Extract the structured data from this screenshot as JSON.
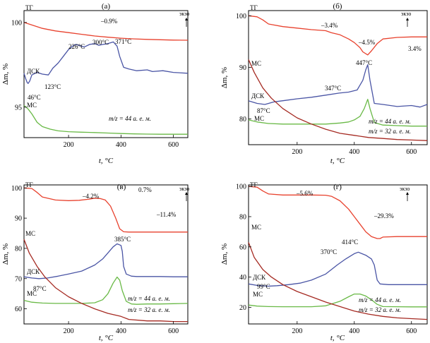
{
  "chart_data": [
    {
      "type": "line",
      "panel_label": "(а)",
      "xlabel": "t, °C",
      "ylabel": "Δm, %",
      "xlim": [
        30,
        655
      ],
      "ylim": [
        93.2,
        100.7
      ],
      "xticks": [
        200,
        400,
        600
      ],
      "yticks": [
        95,
        100
      ],
      "series": [
        {
          "name": "ТГ",
          "kind": "data",
          "color": "#e8422e",
          "x": [
            30,
            60,
            100,
            150,
            200,
            250,
            300,
            350,
            400,
            450,
            500,
            550,
            600,
            655
          ],
          "y": [
            100,
            99.85,
            99.65,
            99.5,
            99.4,
            99.3,
            99.2,
            99.13,
            99.07,
            99.03,
            99.0,
            98.98,
            98.96,
            98.95
          ]
        },
        {
          "name": "ДСК",
          "kind": "relative",
          "color": "#4a55a5",
          "x": [
            30,
            36,
            42,
            46,
            52,
            60,
            80,
            100,
            123,
            140,
            160,
            180,
            200,
            215,
            226,
            240,
            260,
            280,
            300,
            315,
            330,
            350,
            371,
            385,
            395,
            410,
            430,
            460,
            500,
            520,
            560,
            600,
            655
          ],
          "y": [
            97.0,
            96.7,
            96.45,
            96.4,
            96.55,
            96.9,
            97.05,
            96.95,
            96.9,
            97.3,
            97.6,
            98.0,
            98.4,
            98.6,
            98.7,
            98.65,
            98.55,
            98.7,
            98.75,
            98.65,
            98.7,
            98.75,
            98.85,
            98.6,
            98.0,
            97.35,
            97.25,
            97.15,
            97.2,
            97.1,
            97.15,
            97.05,
            97.0
          ]
        },
        {
          "name": "МС",
          "kind": "relative",
          "color": "#69b946",
          "x": [
            30,
            45,
            60,
            80,
            100,
            130,
            160,
            200,
            250,
            300,
            350,
            400,
            450,
            500,
            550,
            600,
            655
          ],
          "y": [
            95.1,
            94.9,
            94.6,
            94.1,
            93.85,
            93.7,
            93.6,
            93.55,
            93.52,
            93.5,
            93.47,
            93.44,
            93.42,
            93.41,
            93.4,
            93.4,
            93.4
          ]
        }
      ],
      "annotations": [
        "–0.9%",
        "226°C",
        "300°C",
        "371°C",
        "46°C",
        "123°C",
        "m/z = 44 а. е. м.",
        "экзо"
      ],
      "series_labels": [
        "ТГ",
        "ДСК",
        "МС"
      ]
    },
    {
      "type": "line",
      "panel_label": "(б)",
      "xlabel": "t, °C",
      "ylabel": "Δm, %",
      "xlim": [
        30,
        655
      ],
      "ylim": [
        75,
        101
      ],
      "xticks": [
        200,
        400,
        600
      ],
      "yticks": [
        80,
        90,
        100
      ],
      "series": [
        {
          "name": "ТГ",
          "kind": "data",
          "color": "#e8422e",
          "x": [
            30,
            60,
            80,
            100,
            150,
            200,
            250,
            300,
            320,
            350,
            380,
            400,
            420,
            430,
            447,
            460,
            480,
            500,
            550,
            600,
            655
          ],
          "y": [
            100,
            99.8,
            99.2,
            98.4,
            97.9,
            97.6,
            97.3,
            97.1,
            96.7,
            96.3,
            95.5,
            94.8,
            93.8,
            93.0,
            92.4,
            93.2,
            94.6,
            95.5,
            95.8,
            95.9,
            95.9
          ]
        },
        {
          "name": "ДСК",
          "kind": "relative",
          "color": "#4a55a5",
          "x": [
            30,
            60,
            87,
            120,
            160,
            200,
            250,
            300,
            347,
            380,
            410,
            430,
            440,
            447,
            455,
            470,
            500,
            550,
            600,
            630,
            655
          ],
          "y": [
            83.5,
            83.0,
            82.8,
            83.3,
            83.6,
            83.9,
            84.2,
            84.6,
            85.0,
            85.2,
            85.6,
            87.5,
            89.5,
            90.5,
            87.5,
            83.0,
            82.8,
            82.4,
            82.6,
            82.3,
            82.8
          ]
        },
        {
          "name": "МС 44",
          "kind": "relative",
          "color": "#69b946",
          "x": [
            30,
            60,
            100,
            150,
            200,
            250,
            300,
            350,
            380,
            400,
            420,
            435,
            447,
            455,
            470,
            500,
            550,
            600,
            655
          ],
          "y": [
            79.8,
            79.4,
            79.1,
            79.0,
            79.0,
            79.0,
            79.0,
            79.2,
            79.4,
            79.8,
            80.5,
            82.0,
            83.8,
            82.0,
            79.3,
            78.8,
            78.7,
            78.6,
            78.6
          ]
        },
        {
          "name": "МС 32",
          "kind": "relative",
          "color": "#a52a22",
          "x": [
            30,
            50,
            80,
            110,
            150,
            200,
            250,
            300,
            350,
            400,
            450,
            500,
            550,
            600,
            655
          ],
          "y": [
            91.5,
            89.0,
            86.0,
            84.0,
            82.0,
            80.2,
            79.0,
            78.0,
            77.2,
            76.8,
            76.4,
            76.2,
            76.0,
            75.9,
            75.8
          ]
        }
      ],
      "annotations": [
        "–3.4%",
        "–4.5%",
        "3.4%",
        "447°C",
        "347°C",
        "87°C",
        "m/z = 44 а. е. м.",
        "m/z = 32 а. е. м.",
        "экзо"
      ],
      "series_labels": [
        "ТГ",
        "МС",
        "ДСК",
        "МС"
      ]
    },
    {
      "type": "line",
      "panel_label": "(в)",
      "xlabel": "t, °C",
      "ylabel": "Δm, %",
      "xlim": [
        30,
        655
      ],
      "ylim": [
        55,
        101
      ],
      "xticks": [
        200,
        400,
        600
      ],
      "yticks": [
        60,
        70,
        80,
        90,
        100
      ],
      "series": [
        {
          "name": "ТГ",
          "kind": "data",
          "color": "#e8422e",
          "x": [
            30,
            60,
            80,
            100,
            150,
            200,
            240,
            280,
            300,
            320,
            340,
            360,
            380,
            395,
            410,
            430,
            500,
            550,
            600,
            655
          ],
          "y": [
            100,
            99.8,
            98.5,
            97.0,
            96.0,
            95.8,
            95.9,
            96.3,
            96.6,
            96.5,
            96.0,
            94.0,
            90.0,
            86.5,
            85.5,
            85.4,
            85.4,
            85.4,
            85.4,
            85.4
          ]
        },
        {
          "name": "ДСК",
          "kind": "relative",
          "color": "#4a55a5",
          "x": [
            30,
            60,
            87,
            120,
            160,
            200,
            250,
            300,
            330,
            350,
            370,
            385,
            400,
            405,
            410,
            420,
            440,
            460,
            500,
            550,
            600,
            655
          ],
          "y": [
            70.6,
            70.2,
            70.0,
            70.2,
            70.8,
            71.5,
            72.5,
            74.5,
            76.5,
            78.5,
            80.5,
            81.5,
            81.0,
            79.0,
            74.0,
            71.5,
            70.8,
            70.7,
            70.7,
            70.7,
            70.6,
            70.6
          ]
        },
        {
          "name": "МС 44",
          "kind": "relative",
          "color": "#69b946",
          "x": [
            30,
            60,
            100,
            150,
            200,
            250,
            300,
            330,
            350,
            370,
            385,
            395,
            405,
            420,
            440,
            460,
            500,
            550,
            600,
            655
          ],
          "y": [
            62.8,
            62.2,
            61.9,
            61.8,
            61.8,
            61.8,
            62.0,
            63.0,
            65.0,
            68.5,
            70.5,
            69.5,
            66.0,
            62.5,
            61.6,
            61.5,
            61.6,
            61.6,
            61.7,
            61.8
          ]
        },
        {
          "name": "МС 32",
          "kind": "relative",
          "color": "#a52a22",
          "x": [
            30,
            50,
            80,
            110,
            150,
            200,
            250,
            300,
            350,
            400,
            430,
            500,
            550,
            600,
            655
          ],
          "y": [
            83.0,
            78.5,
            74.0,
            70.5,
            67.0,
            64.0,
            61.8,
            60.0,
            58.5,
            57.5,
            56.5,
            56.0,
            56.0,
            55.8,
            55.8
          ]
        }
      ],
      "annotations": [
        "–4.2%",
        "0.7%",
        "–11.4%",
        "385°C",
        "87°C",
        "m/z = 44 а. е. м.",
        "m/z = 32 а. е. м.",
        "экзо"
      ],
      "series_labels": [
        "ТГ",
        "МС",
        "ДСК",
        "МС"
      ]
    },
    {
      "type": "line",
      "panel_label": "(г)",
      "xlabel": "t, °C",
      "ylabel": "Δm, %",
      "xlim": [
        30,
        655
      ],
      "ylim": [
        9,
        101
      ],
      "xticks": [
        200,
        400,
        600
      ],
      "yticks": [
        20,
        40,
        60,
        80,
        100
      ],
      "series": [
        {
          "name": "ТГ",
          "kind": "data",
          "color": "#e8422e",
          "x": [
            30,
            60,
            80,
            100,
            150,
            200,
            250,
            300,
            320,
            350,
            380,
            400,
            420,
            440,
            460,
            480,
            490,
            500,
            550,
            600,
            655
          ],
          "y": [
            100,
            99.5,
            97.0,
            95.0,
            94.3,
            94.3,
            94.3,
            94.2,
            93.5,
            90.5,
            85.0,
            80.0,
            75.0,
            70.0,
            66.8,
            65.5,
            65.5,
            66.5,
            66.8,
            66.8,
            66.8
          ]
        },
        {
          "name": "ДСК",
          "kind": "relative",
          "color": "#4a55a5",
          "x": [
            30,
            60,
            99,
            130,
            170,
            210,
            250,
            300,
            340,
            370,
            400,
            414,
            440,
            460,
            470,
            480,
            490,
            520,
            560,
            600,
            655
          ],
          "y": [
            35.5,
            34.5,
            34.0,
            34.3,
            35.0,
            36.0,
            38.0,
            42.0,
            48.0,
            52.0,
            55.5,
            56.5,
            54.5,
            52.0,
            48.0,
            38.0,
            35.5,
            35.0,
            35.0,
            35.0,
            35.0
          ]
        },
        {
          "name": "МС 44",
          "kind": "relative",
          "color": "#69b946",
          "x": [
            30,
            60,
            100,
            150,
            200,
            250,
            300,
            350,
            380,
            400,
            420,
            440,
            460,
            480,
            500,
            550,
            600,
            655
          ],
          "y": [
            21.5,
            20.8,
            20.5,
            20.4,
            20.4,
            20.4,
            21.0,
            24.0,
            27.0,
            28.8,
            28.8,
            27.5,
            25.0,
            22.0,
            20.5,
            20.4,
            20.3,
            20.3
          ]
        },
        {
          "name": "МС 32",
          "kind": "relative",
          "color": "#a52a22",
          "x": [
            30,
            50,
            80,
            110,
            150,
            200,
            250,
            300,
            350,
            400,
            450,
            500,
            550,
            600,
            655
          ],
          "y": [
            63.0,
            53.0,
            45.0,
            40.0,
            35.0,
            30.5,
            27.0,
            23.5,
            20.5,
            17.5,
            15.5,
            14.0,
            13.0,
            12.5,
            12.0
          ]
        }
      ],
      "annotations": [
        "–5.6%",
        "–29.3%",
        "414°C",
        "370°C",
        "99°C",
        "m/z = 44 а. е. м.",
        "m/z = 32 а. е. м.",
        "экзо"
      ],
      "series_labels": [
        "ТГ",
        "МС",
        "ДСК",
        "МС"
      ]
    }
  ]
}
